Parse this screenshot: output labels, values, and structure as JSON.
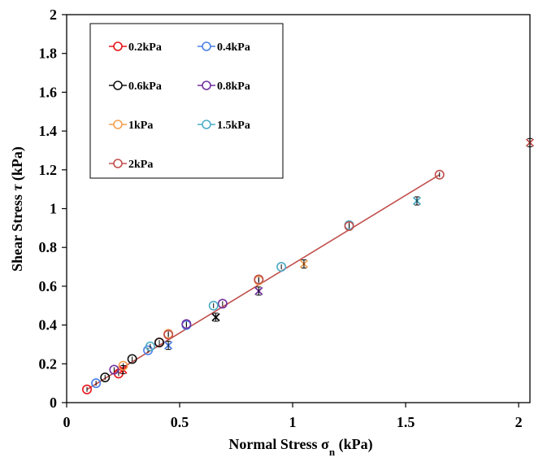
{
  "chart_data": {
    "type": "scatter",
    "xlabel_main": "Normal Stress σ",
    "xlabel_sub": "n",
    "xlabel_unit": " (kPa)",
    "ylabel_main": "Shear Stress ",
    "ylabel_symbol": "τ",
    "ylabel_unit": " (kPa)",
    "xlim": [
      0,
      2.05
    ],
    "ylim": [
      0,
      2
    ],
    "x_ticks": [
      0,
      0.5,
      1,
      1.5,
      2
    ],
    "x_tick_labels": [
      "0",
      "0.5",
      "1",
      "1.5",
      "2"
    ],
    "y_ticks": [
      0,
      0.2,
      0.4,
      0.6,
      0.8,
      1,
      1.2,
      1.4,
      1.6,
      1.8,
      2
    ],
    "y_tick_labels": [
      "0",
      "0.2",
      "0.4",
      "0.6",
      "0.8",
      "1",
      "1.2",
      "1.4",
      "1.6",
      "1.8",
      "2"
    ],
    "grid": false,
    "legend_position": "top-left",
    "series": [
      {
        "name": "0.2kPa",
        "color": "#e8141a",
        "points": [
          [
            0.09,
            0.068
          ],
          [
            0.23,
            0.15
          ],
          [
            0.41,
            0.31
          ]
        ],
        "x_markers": [
          [
            0.25,
            0.17
          ]
        ]
      },
      {
        "name": "0.4kPa",
        "color": "#4a7fe8",
        "points": [
          [
            0.13,
            0.1
          ],
          [
            0.36,
            0.27
          ],
          [
            0.53,
            0.4
          ]
        ],
        "x_markers": [
          [
            0.45,
            0.295
          ]
        ]
      },
      {
        "name": "0.6kPa",
        "color": "#111111",
        "points": [
          [
            0.17,
            0.13
          ],
          [
            0.29,
            0.225
          ],
          [
            0.41,
            0.31
          ]
        ],
        "x_markers": [
          [
            0.66,
            0.44
          ]
        ]
      },
      {
        "name": "0.8kPa",
        "color": "#7030a0",
        "points": [
          [
            0.21,
            0.17
          ],
          [
            0.53,
            0.405
          ],
          [
            0.69,
            0.51
          ]
        ],
        "x_markers": [
          [
            0.85,
            0.575
          ]
        ]
      },
      {
        "name": "1kPa",
        "color": "#f4a050",
        "points": [
          [
            0.25,
            0.19
          ],
          [
            0.45,
            0.355
          ],
          [
            0.85,
            0.63
          ]
        ],
        "x_markers": [
          [
            1.05,
            0.715
          ]
        ]
      },
      {
        "name": "1.5kPa",
        "color": "#4bacc6",
        "points": [
          [
            0.37,
            0.29
          ],
          [
            0.65,
            0.5
          ],
          [
            0.95,
            0.7
          ],
          [
            1.25,
            0.915
          ]
        ],
        "x_markers": [
          [
            1.55,
            1.04
          ]
        ]
      },
      {
        "name": "2kPa",
        "color": "#c0504d",
        "points": [
          [
            0.45,
            0.35
          ],
          [
            0.85,
            0.635
          ],
          [
            1.25,
            0.91
          ],
          [
            1.65,
            1.175
          ]
        ],
        "x_markers": [
          [
            2.05,
            1.34
          ]
        ]
      }
    ],
    "trend_line": {
      "color": "#c0504d",
      "points": [
        [
          0.09,
          0.068
        ],
        [
          1.65,
          1.175
        ]
      ]
    }
  }
}
